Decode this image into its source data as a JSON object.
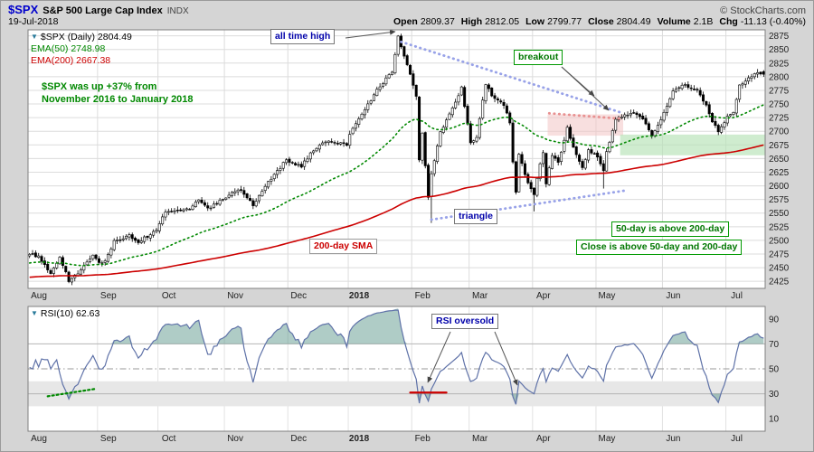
{
  "header": {
    "symbol": "$SPX",
    "name": "S&P 500 Large Cap Index",
    "exchange": "INDX",
    "copyright": "© StockCharts.com",
    "date": "19-Jul-2018",
    "quote": [
      {
        "label": "Open",
        "value": "2809.37"
      },
      {
        "label": "High",
        "value": "2812.05"
      },
      {
        "label": "Low",
        "value": "2799.77"
      },
      {
        "label": "Close",
        "value": "2804.49"
      },
      {
        "label": "Volume",
        "value": "2.1B"
      },
      {
        "label": "Chg",
        "value": "-11.13 (-0.40%)"
      }
    ]
  },
  "icons": {
    "panel_toggle": "▼"
  },
  "main_chart": {
    "legend": {
      "symbol_line": "$SPX (Daily) 2804.49",
      "ema50": "EMA(50) 2748.98",
      "ema200": "EMA(200) 2667.38"
    },
    "annotations": {
      "all_time_high": "all time high",
      "breakout": "breakout",
      "note_line1": "$SPX was up +37% from",
      "note_line2": "November 2016 to January 2018",
      "triangle": "triangle",
      "sma200": "200-day SMA",
      "above1": "50-day is above 200-day",
      "above2": "Close is above 50-day and 200-day"
    }
  },
  "rsi": {
    "legend": "RSI(10) 62.63",
    "oversold_label": "RSI oversold"
  },
  "arrows": [
    {
      "name": "ath-arrow",
      "from": [
        381,
        41
      ],
      "to": [
        436,
        34
      ]
    },
    {
      "name": "breakout-arrow-1",
      "from": [
        620,
        73
      ],
      "to": [
        656,
        105
      ]
    },
    {
      "name": "breakout-arrow-2",
      "from": [
        620,
        73
      ],
      "to": [
        672,
        121
      ]
    },
    {
      "name": "rsi-oversold-arrow-1",
      "from": [
        497,
        366
      ],
      "to": [
        472,
        422
      ]
    },
    {
      "name": "rsi-oversold-arrow-2",
      "from": [
        546,
        366
      ],
      "to": [
        571,
        425
      ]
    }
  ],
  "chart_data": [
    {
      "type": "candlestick",
      "title": "$SPX S&P 500 Large Cap Index (Daily)",
      "x_labels": [
        "Aug",
        "Sep",
        "Oct",
        "Nov",
        "Dec",
        "2018",
        "Feb",
        "Mar",
        "Apr",
        "May",
        "Jun",
        "Jul"
      ],
      "bold_x_label": "2018",
      "month_start_indices": [
        0,
        23,
        43,
        65,
        86,
        106,
        127,
        146,
        167,
        188,
        210,
        231
      ],
      "num_days": 244,
      "y_ticks": [
        2425,
        2450,
        2475,
        2500,
        2525,
        2550,
        2575,
        2600,
        2625,
        2650,
        2675,
        2700,
        2725,
        2750,
        2775,
        2800,
        2825,
        2850,
        2875
      ],
      "y_range": [
        2412,
        2886
      ],
      "close_anchors": [
        [
          0,
          2476
        ],
        [
          3,
          2470
        ],
        [
          7,
          2438
        ],
        [
          10,
          2468
        ],
        [
          13,
          2426
        ],
        [
          14,
          2428
        ],
        [
          17,
          2446
        ],
        [
          21,
          2472
        ],
        [
          23,
          2457
        ],
        [
          25,
          2461
        ],
        [
          28,
          2498
        ],
        [
          33,
          2508
        ],
        [
          36,
          2497
        ],
        [
          42,
          2519
        ],
        [
          45,
          2552
        ],
        [
          49,
          2555
        ],
        [
          53,
          2559
        ],
        [
          56,
          2575
        ],
        [
          59,
          2557
        ],
        [
          64,
          2575
        ],
        [
          67,
          2588
        ],
        [
          70,
          2594
        ],
        [
          74,
          2565
        ],
        [
          78,
          2599
        ],
        [
          82,
          2627
        ],
        [
          85,
          2648
        ],
        [
          86,
          2642
        ],
        [
          90,
          2636
        ],
        [
          93,
          2659
        ],
        [
          97,
          2679
        ],
        [
          100,
          2683
        ],
        [
          105,
          2674
        ],
        [
          106,
          2696
        ],
        [
          109,
          2724
        ],
        [
          112,
          2748
        ],
        [
          115,
          2776
        ],
        [
          118,
          2796
        ],
        [
          120,
          2810
        ],
        [
          122,
          2873
        ],
        [
          124,
          2839
        ],
        [
          125,
          2824
        ],
        [
          128,
          2762
        ],
        [
          129,
          2649
        ],
        [
          130,
          2695
        ],
        [
          132,
          2581
        ],
        [
          133,
          2620
        ],
        [
          136,
          2698
        ],
        [
          139,
          2731
        ],
        [
          143,
          2780
        ],
        [
          145,
          2714
        ],
        [
          146,
          2678
        ],
        [
          148,
          2691
        ],
        [
          151,
          2787
        ],
        [
          153,
          2765
        ],
        [
          157,
          2749
        ],
        [
          159,
          2713
        ],
        [
          160,
          2644
        ],
        [
          161,
          2588
        ],
        [
          162,
          2658
        ],
        [
          165,
          2605
        ],
        [
          167,
          2582
        ],
        [
          168,
          2614
        ],
        [
          170,
          2663
        ],
        [
          171,
          2604
        ],
        [
          173,
          2657
        ],
        [
          175,
          2642
        ],
        [
          178,
          2708
        ],
        [
          180,
          2670
        ],
        [
          183,
          2634
        ],
        [
          185,
          2666
        ],
        [
          188,
          2654
        ],
        [
          190,
          2630
        ],
        [
          191,
          2663
        ],
        [
          194,
          2720
        ],
        [
          197,
          2730
        ],
        [
          201,
          2733
        ],
        [
          203,
          2724
        ],
        [
          206,
          2690
        ],
        [
          209,
          2722
        ],
        [
          210,
          2734
        ],
        [
          213,
          2772
        ],
        [
          217,
          2786
        ],
        [
          221,
          2774
        ],
        [
          224,
          2749
        ],
        [
          226,
          2717
        ],
        [
          228,
          2700
        ],
        [
          230,
          2718
        ],
        [
          231,
          2726
        ],
        [
          233,
          2736
        ],
        [
          235,
          2784
        ],
        [
          238,
          2798
        ],
        [
          239,
          2801
        ],
        [
          241,
          2810
        ],
        [
          243,
          2804.49
        ]
      ],
      "last_candle": {
        "open": 2809.37,
        "high": 2812.05,
        "low": 2799.77,
        "close": 2804.49
      },
      "wick_extensions": [
        {
          "i": 122,
          "high": 2872.87
        },
        {
          "i": 133,
          "low": 2532
        },
        {
          "i": 167,
          "low": 2553
        },
        {
          "i": 190,
          "low": 2595
        }
      ],
      "candle_up_color": "#ffffff",
      "candle_down_color": "#000000",
      "overlays": [
        {
          "name": "EMA(50)",
          "period": 50,
          "seed": 2458,
          "color": "#008800",
          "style": "dotted",
          "legend_value": 2748.98
        },
        {
          "name": "EMA(200)",
          "period": 200,
          "seed": 2432,
          "color": "#cc0000",
          "style": "solid",
          "legend_value": 2667.38
        }
      ],
      "trendlines": [
        {
          "name": "triangle-upper-line",
          "color": "#98a2e8",
          "dash": true,
          "from": [
            123,
            2864
          ],
          "to": [
            196,
            2734
          ]
        },
        {
          "name": "triangle-lower-line",
          "color": "#98a2e8",
          "dash": true,
          "from": [
            133,
            2538
          ],
          "to": [
            198,
            2592
          ]
        },
        {
          "name": "resistance-line",
          "color": "#e89090",
          "dash": true,
          "from": [
            172,
            2733
          ],
          "to": [
            196,
            2723
          ]
        }
      ],
      "zones": [
        {
          "name": "breakout-zone",
          "color": "#f2c4c4",
          "opacity": 0.55,
          "x": [
            172,
            197
          ],
          "price": [
            2692,
            2731
          ]
        },
        {
          "name": "support-zone",
          "color": "#b5e2b5",
          "opacity": 0.65,
          "x": [
            196,
            244
          ],
          "price": [
            2656,
            2694
          ]
        }
      ]
    },
    {
      "type": "line",
      "name": "RSI(10)",
      "period": 10,
      "last_value": 62.63,
      "y_ticks": [
        10,
        30,
        50,
        70,
        90
      ],
      "y_range": [
        0,
        100
      ],
      "overbought": 70,
      "oversold": 30,
      "mid": 50,
      "band": [
        20,
        40
      ],
      "line_color": "#5f72a8",
      "fill_color": "#4d8f80",
      "marks": [
        {
          "name": "rsi-green-dotted-mark",
          "color": "#008800",
          "dash": true,
          "from": [
            6,
            28
          ],
          "to": [
            22,
            34
          ]
        },
        {
          "name": "rsi-red-mark",
          "color": "#cc0000",
          "dash": false,
          "from": [
            126,
            31
          ],
          "to": [
            138,
            31
          ]
        }
      ]
    }
  ]
}
